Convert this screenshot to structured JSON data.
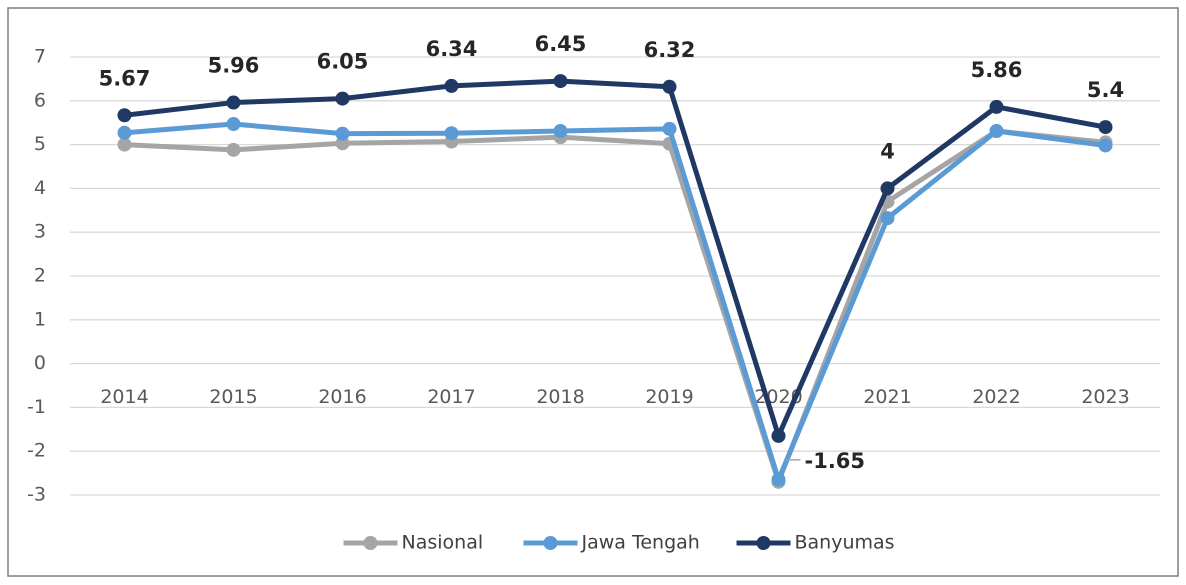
{
  "chart_data": {
    "type": "line",
    "categories": [
      "2014",
      "2015",
      "2016",
      "2017",
      "2018",
      "2019",
      "2020",
      "2021",
      "2022",
      "2023"
    ],
    "series": [
      {
        "name": "Nasional",
        "color": "#a5a5a5",
        "values": [
          5.0,
          4.88,
          5.03,
          5.07,
          5.17,
          5.02,
          -2.7,
          3.7,
          5.31,
          5.05
        ]
      },
      {
        "name": "Jawa Tengah",
        "color": "#5b9bd5",
        "values": [
          5.27,
          5.47,
          5.25,
          5.26,
          5.31,
          5.36,
          -2.65,
          3.32,
          5.31,
          4.98
        ]
      },
      {
        "name": "Banyumas",
        "color": "#203864",
        "values": [
          5.67,
          5.96,
          6.05,
          6.34,
          6.45,
          6.32,
          -1.65,
          4,
          5.86,
          5.4
        ],
        "data_labels": true
      }
    ],
    "ylim": [
      -3,
      7
    ],
    "yticks": [
      -3,
      -2,
      -1,
      0,
      1,
      2,
      3,
      4,
      5,
      6,
      7
    ],
    "grid": true,
    "legend": "bottom"
  }
}
